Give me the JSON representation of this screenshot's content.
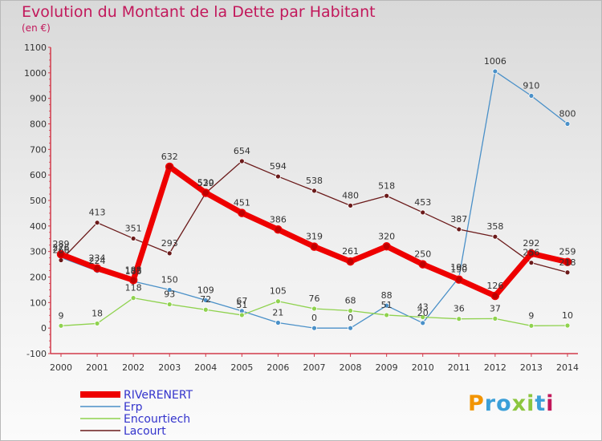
{
  "title": "Evolution du Montant de la Dette par Habitant",
  "subtitle": "(en €)",
  "logo_text": "Proxiti",
  "chart_data": {
    "type": "line",
    "title": "Evolution du Montant de la Dette par Habitant",
    "subtitle": "(en €)",
    "ylim": [
      -100,
      1100
    ],
    "y_ticks": [
      -100,
      0,
      100,
      200,
      300,
      400,
      500,
      600,
      700,
      800,
      900,
      1000,
      1100
    ],
    "x": [
      "2000",
      "2001",
      "2002",
      "2003",
      "2004",
      "2005",
      "2006",
      "2007",
      "2008",
      "2009",
      "2010",
      "2011",
      "2012",
      "2013",
      "2014"
    ],
    "grid": false,
    "legend_position": "bottom-left",
    "series": [
      {
        "name": "RIVeRENERT",
        "color": "#ee0000",
        "values": [
          289,
          234,
          188,
          632,
          530,
          451,
          386,
          319,
          261,
          320,
          250,
          190,
          126,
          292,
          259
        ]
      },
      {
        "name": "Erp",
        "color": "#4a90c8",
        "values": [
          276,
          224,
          183,
          150,
          109,
          67,
          21,
          0,
          0,
          88,
          20,
          198,
          1006,
          910,
          800
        ]
      },
      {
        "name": "Encourtiech",
        "color": "#8fd24e",
        "values": [
          9,
          18,
          118,
          93,
          72,
          51,
          105,
          76,
          68,
          51,
          43,
          36,
          37,
          9,
          10
        ]
      },
      {
        "name": "Lacourt",
        "color": "#6b1a1a",
        "values": [
          266,
          413,
          351,
          293,
          529,
          654,
          594,
          538,
          480,
          518,
          453,
          387,
          358,
          256,
          218
        ]
      }
    ]
  }
}
